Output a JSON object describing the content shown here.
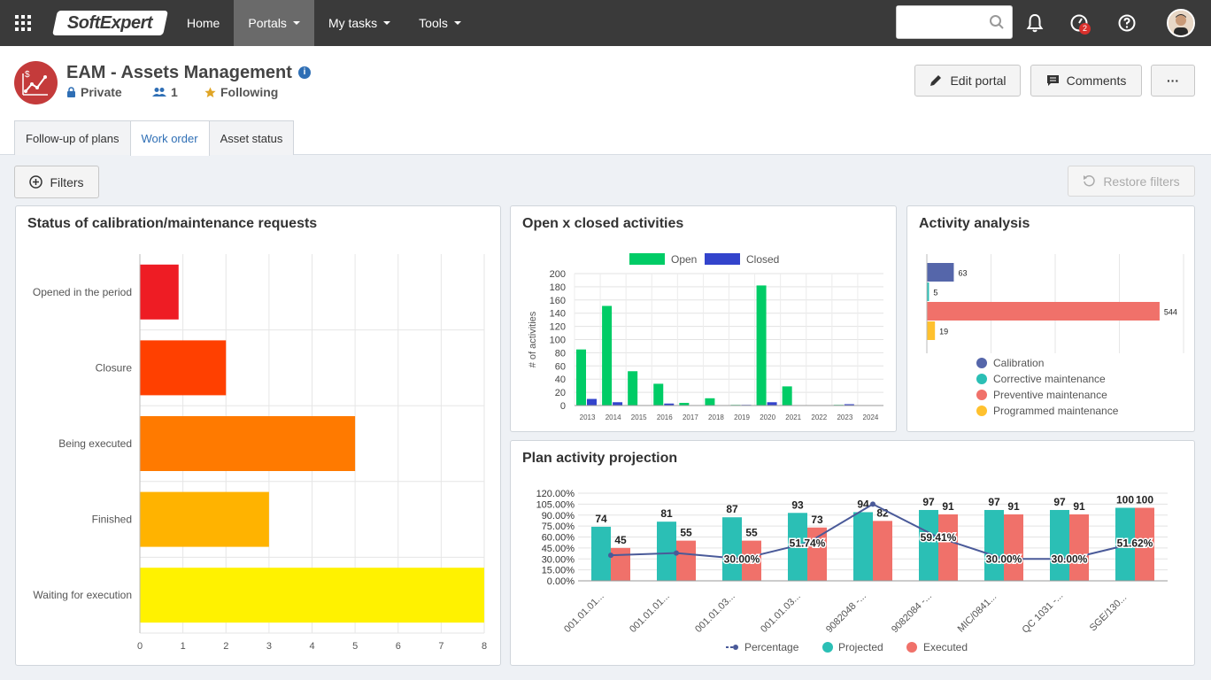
{
  "nav": {
    "logo": "SoftExpert",
    "items": [
      {
        "label": "Home"
      },
      {
        "label": "Portals"
      },
      {
        "label": "My tasks"
      },
      {
        "label": "Tools"
      }
    ],
    "search": {
      "value": "",
      "placeholder": ""
    },
    "notification_badge": "2"
  },
  "portal": {
    "title": "EAM - Assets Management",
    "privacy": "Private",
    "members": "1",
    "following": "Following",
    "edit_label": "Edit portal",
    "comments_label": "Comments",
    "more_label": "···",
    "tabs": [
      {
        "label": "Follow-up of plans"
      },
      {
        "label": "Work order"
      },
      {
        "label": "Asset status"
      }
    ]
  },
  "filters_label": "Filters",
  "restore_label": "Restore filters",
  "colors": {
    "accent": "#2f6fb5",
    "open": "#00cc66",
    "closed": "#3344cc",
    "projected": "#2bbfb5",
    "executed": "#f0716a"
  },
  "panels": {
    "status": {
      "title": "Status of calibration/maintenance requests"
    },
    "openclosed": {
      "title": "Open x closed activities"
    },
    "analysis": {
      "title": "Activity analysis"
    },
    "projection": {
      "title": "Plan activity projection"
    }
  },
  "chart_data": [
    {
      "id": "status",
      "type": "bar",
      "orientation": "horizontal",
      "title": "Status of calibration/maintenance requests",
      "categories": [
        "Opened in the period",
        "Closure",
        "Being executed",
        "Finished",
        "Waiting for execution"
      ],
      "values": [
        0.9,
        2,
        5,
        3,
        8
      ],
      "colors": [
        "#ee1c24",
        "#ff4000",
        "#ff7a00",
        "#ffb300",
        "#fff200"
      ],
      "xlim": [
        0,
        8
      ],
      "xticks": [
        0,
        1,
        2,
        3,
        4,
        5,
        6,
        7,
        8
      ],
      "grid": true
    },
    {
      "id": "openclosed",
      "type": "bar",
      "title": "Open x closed activities",
      "ylabel": "# of activities",
      "categories": [
        "2013",
        "2014",
        "2015",
        "2016",
        "2017",
        "2018",
        "2019",
        "2020",
        "2021",
        "2022",
        "2023",
        "2024"
      ],
      "series": [
        {
          "name": "Open",
          "values": [
            85,
            151,
            52,
            33,
            4,
            11,
            1,
            182,
            29,
            0,
            1,
            0
          ]
        },
        {
          "name": "Closed",
          "values": [
            10,
            5,
            0,
            3,
            0,
            0,
            1,
            5,
            0,
            0,
            2,
            0
          ]
        }
      ],
      "ylim": [
        0,
        200
      ],
      "yticks": [
        0,
        20,
        40,
        60,
        80,
        100,
        120,
        140,
        160,
        180,
        200
      ],
      "legend": "top",
      "grid": true
    },
    {
      "id": "analysis",
      "type": "bar",
      "orientation": "horizontal",
      "title": "Activity analysis",
      "series": [
        {
          "name": "Calibration",
          "values": [
            63
          ],
          "color": "#5566aa"
        },
        {
          "name": "Corrective maintenance",
          "values": [
            5
          ],
          "color": "#2bbfb5"
        },
        {
          "name": "Preventive maintenance",
          "values": [
            544
          ],
          "color": "#f0716a"
        },
        {
          "name": "Programmed maintenance",
          "values": [
            19
          ],
          "color": "#ffc12e"
        }
      ],
      "xlim": [
        0,
        600
      ],
      "legend": "bottom",
      "grid": true
    },
    {
      "id": "projection",
      "type": "bar",
      "title": "Plan activity projection",
      "categories": [
        "001.01.01...",
        "001.01.01...",
        "001.01.03...",
        "001.01.03...",
        "9082048 -...",
        "9082084 -...",
        "MIC/0841...",
        "QC 1031 -...",
        "SGE/130..."
      ],
      "series": [
        {
          "name": "Projected",
          "values": [
            74,
            81,
            87,
            93,
            94,
            97,
            97,
            97,
            100
          ]
        },
        {
          "name": "Executed",
          "values": [
            45,
            55,
            55,
            73,
            82,
            91,
            91,
            91,
            100
          ]
        },
        {
          "name": "Percentage",
          "values": [
            35,
            38,
            30,
            51.74,
            105,
            59.41,
            30,
            30,
            51.62
          ]
        }
      ],
      "percentage_labels": [
        "",
        "",
        "30.00%",
        "51.74%",
        "",
        "59.41%",
        "30.00%",
        "30.00%",
        "51.62%"
      ],
      "yticks": [
        "0.00%",
        "15.00%",
        "30.00%",
        "45.00%",
        "60.00%",
        "75.00%",
        "90.00%",
        "105.00%",
        "120.00%"
      ],
      "ylim": [
        0,
        120
      ],
      "legend": "bottom",
      "grid": true
    }
  ]
}
